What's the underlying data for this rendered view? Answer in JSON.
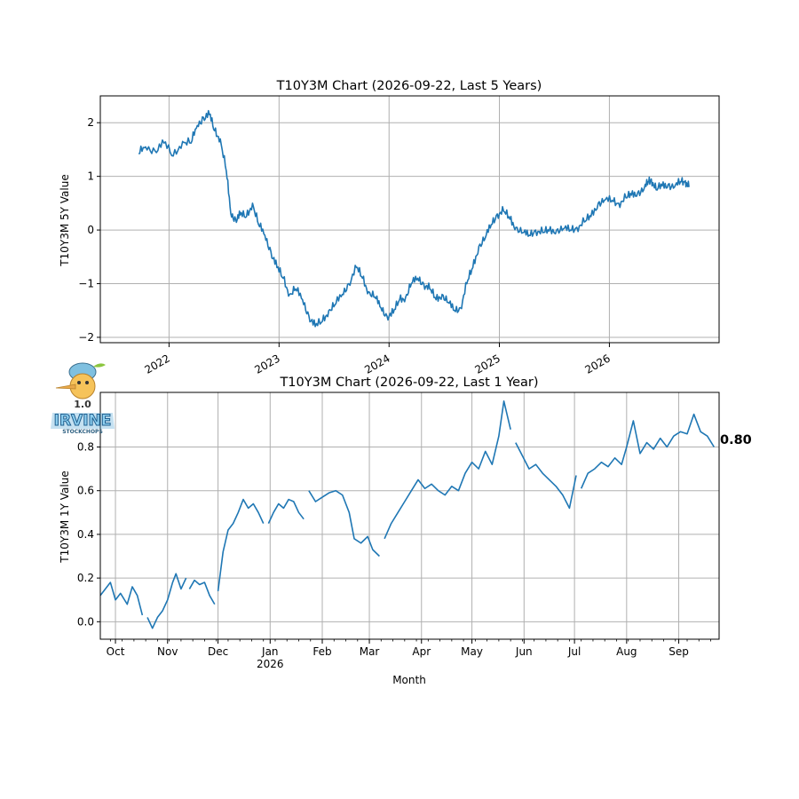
{
  "colors": {
    "line": "#1f77b4",
    "grid": "#b0b0b0",
    "axis": "#000000"
  },
  "logo": {
    "icon": "pinocchio-mascot-icon",
    "version": "1.0",
    "brand": "IRVINE",
    "tagline": "STOCKCHOPS"
  },
  "chart_data": [
    {
      "type": "line",
      "title": "T10Y3M Chart (2026-09-22, Last 5 Years)",
      "xlabel": "",
      "ylabel": "T10Y3M 5Y Value",
      "xlim": [
        "2021-05-18",
        "2026-12-31"
      ],
      "ylim": [
        -2.1,
        2.5
      ],
      "yticks": [
        -2,
        -1,
        0,
        1,
        2
      ],
      "xticks": [
        {
          "date": "2022-01-01",
          "label": "2022"
        },
        {
          "date": "2023-01-01",
          "label": "2023"
        },
        {
          "date": "2024-01-01",
          "label": "2024"
        },
        {
          "date": "2025-01-01",
          "label": "2025"
        },
        {
          "date": "2026-01-01",
          "label": "2026"
        }
      ],
      "grid": true,
      "series": [
        {
          "x": [
            "2021-09-22",
            "2021-10-15",
            "2021-11-15",
            "2021-12-15",
            "2022-01-15",
            "2022-02-15",
            "2022-03-15",
            "2022-04-05",
            "2022-04-25",
            "2022-05-15",
            "2022-06-01",
            "2022-06-20",
            "2022-07-10",
            "2022-07-25",
            "2022-08-10",
            "2022-08-25",
            "2022-09-15",
            "2022-10-05",
            "2022-10-25",
            "2022-11-15",
            "2022-12-05",
            "2022-12-25",
            "2023-01-15",
            "2023-02-05",
            "2023-02-25",
            "2023-03-20",
            "2023-04-10",
            "2023-05-01",
            "2023-05-25",
            "2023-06-15",
            "2023-07-05",
            "2023-07-30",
            "2023-08-20",
            "2023-09-15",
            "2023-10-05",
            "2023-10-25",
            "2023-11-15",
            "2023-12-05",
            "2023-12-25",
            "2024-01-15",
            "2024-02-05",
            "2024-02-25",
            "2024-03-15",
            "2024-04-05",
            "2024-04-25",
            "2024-05-15",
            "2024-06-05",
            "2024-06-25",
            "2024-07-15",
            "2024-08-05",
            "2024-08-25",
            "2024-09-15",
            "2024-10-05",
            "2024-10-25",
            "2024-11-15",
            "2024-12-05",
            "2024-12-25",
            "2025-01-15",
            "2025-02-05",
            "2025-02-25",
            "2025-03-20",
            "2025-04-10",
            "2025-05-01",
            "2025-05-25",
            "2025-06-15",
            "2025-07-10",
            "2025-08-01",
            "2025-08-25",
            "2025-09-15",
            "2025-10-10",
            "2025-11-01",
            "2025-11-25",
            "2025-12-15",
            "2026-01-10",
            "2026-02-01",
            "2026-02-25",
            "2026-03-15",
            "2026-04-05",
            "2026-04-25",
            "2026-05-10",
            "2026-05-20",
            "2026-06-05",
            "2026-06-25",
            "2026-07-15",
            "2026-08-05",
            "2026-08-25",
            "2026-09-10",
            "2026-09-22"
          ],
          "y": [
            1.42,
            1.55,
            1.48,
            1.62,
            1.38,
            1.65,
            1.62,
            1.95,
            2.1,
            2.15,
            1.85,
            1.7,
            1.1,
            0.3,
            0.2,
            0.28,
            0.25,
            0.5,
            0.1,
            -0.1,
            -0.4,
            -0.7,
            -0.9,
            -1.2,
            -1.1,
            -1.3,
            -1.6,
            -1.8,
            -1.7,
            -1.5,
            -1.4,
            -1.2,
            -1.0,
            -0.7,
            -0.9,
            -1.15,
            -1.25,
            -1.45,
            -1.6,
            -1.55,
            -1.3,
            -1.25,
            -1.0,
            -0.9,
            -1.0,
            -1.1,
            -1.3,
            -1.2,
            -1.35,
            -1.5,
            -1.45,
            -1.0,
            -0.7,
            -0.3,
            -0.15,
            0.1,
            0.3,
            0.35,
            0.2,
            0.05,
            -0.05,
            -0.1,
            0.0,
            -0.05,
            -0.02,
            0.0,
            0.02,
            0.0,
            0.05,
            0.15,
            0.25,
            0.5,
            0.55,
            0.55,
            0.5,
            0.6,
            0.65,
            0.7,
            0.75,
            0.9,
            0.95,
            0.75,
            0.82,
            0.85,
            0.8,
            0.9,
            0.92,
            0.8
          ]
        }
      ]
    },
    {
      "type": "line",
      "title": "T10Y3M Chart (2026-09-22, Last 1 Year)",
      "xlabel": "Month",
      "ylabel": "T10Y3M 1Y Value",
      "xlim": [
        "2025-09-22",
        "2026-09-25"
      ],
      "ylim": [
        -0.08,
        1.05
      ],
      "yticks": [
        0.0,
        0.2,
        0.4,
        0.6,
        0.8
      ],
      "xticks": [
        {
          "date": "2025-10-01",
          "label": "Oct"
        },
        {
          "date": "2025-11-01",
          "label": "Nov"
        },
        {
          "date": "2025-12-01",
          "label": "Dec"
        },
        {
          "date": "2026-01-01",
          "label": "Jan",
          "sublabel": "2026"
        },
        {
          "date": "2026-02-01",
          "label": "Feb"
        },
        {
          "date": "2026-03-01",
          "label": "Mar"
        },
        {
          "date": "2026-04-01",
          "label": "Apr"
        },
        {
          "date": "2026-05-01",
          "label": "May"
        },
        {
          "date": "2026-06-01",
          "label": "Jun"
        },
        {
          "date": "2026-07-01",
          "label": "Jul"
        },
        {
          "date": "2026-08-01",
          "label": "Aug"
        },
        {
          "date": "2026-09-01",
          "label": "Sep"
        }
      ],
      "grid": true,
      "last_value_label": "0.80",
      "series": [
        {
          "segments": [
            {
              "x": [
                "2025-09-22",
                "2025-09-25",
                "2025-09-28",
                "2025-10-01",
                "2025-10-04",
                "2025-10-08",
                "2025-10-11",
                "2025-10-14",
                "2025-10-17"
              ],
              "y": [
                0.12,
                0.15,
                0.18,
                0.1,
                0.13,
                0.08,
                0.16,
                0.12,
                0.03
              ]
            },
            {
              "x": [
                "2025-10-20",
                "2025-10-23",
                "2025-10-26",
                "2025-10-29",
                "2025-11-01",
                "2025-11-04",
                "2025-11-06",
                "2025-11-09",
                "2025-11-12"
              ],
              "y": [
                0.02,
                -0.03,
                0.02,
                0.05,
                0.1,
                0.18,
                0.22,
                0.15,
                0.2
              ]
            },
            {
              "x": [
                "2025-11-14",
                "2025-11-17",
                "2025-11-20",
                "2025-11-23",
                "2025-11-26",
                "2025-11-29"
              ],
              "y": [
                0.15,
                0.19,
                0.17,
                0.18,
                0.12,
                0.08
              ]
            },
            {
              "x": [
                "2025-12-01",
                "2025-12-04",
                "2025-12-07",
                "2025-12-10",
                "2025-12-13",
                "2025-12-16",
                "2025-12-19",
                "2025-12-22",
                "2025-12-25",
                "2025-12-28"
              ],
              "y": [
                0.14,
                0.32,
                0.42,
                0.45,
                0.5,
                0.56,
                0.52,
                0.54,
                0.5,
                0.45
              ]
            },
            {
              "x": [
                "2025-12-31",
                "2026-01-03",
                "2026-01-06",
                "2026-01-09",
                "2026-01-12",
                "2026-01-15",
                "2026-01-18",
                "2026-01-21"
              ],
              "y": [
                0.45,
                0.5,
                0.54,
                0.52,
                0.56,
                0.55,
                0.5,
                0.47
              ]
            },
            {
              "x": [
                "2026-01-24",
                "2026-01-28",
                "2026-02-01",
                "2026-02-05",
                "2026-02-09",
                "2026-02-13",
                "2026-02-17",
                "2026-02-20",
                "2026-02-24",
                "2026-02-28",
                "2026-03-03",
                "2026-03-07"
              ],
              "y": [
                0.6,
                0.55,
                0.57,
                0.59,
                0.6,
                0.58,
                0.5,
                0.38,
                0.36,
                0.39,
                0.33,
                0.3
              ]
            },
            {
              "x": [
                "2026-03-10",
                "2026-03-14",
                "2026-03-18",
                "2026-03-22",
                "2026-03-26",
                "2026-03-30",
                "2026-04-03",
                "2026-04-07",
                "2026-04-11",
                "2026-04-15",
                "2026-04-19",
                "2026-04-23",
                "2026-04-27",
                "2026-05-01",
                "2026-05-05",
                "2026-05-09",
                "2026-05-13",
                "2026-05-17",
                "2026-05-20",
                "2026-05-24"
              ],
              "y": [
                0.38,
                0.45,
                0.5,
                0.55,
                0.6,
                0.65,
                0.61,
                0.63,
                0.6,
                0.58,
                0.62,
                0.6,
                0.68,
                0.73,
                0.7,
                0.78,
                0.72,
                0.85,
                1.01,
                0.88
              ]
            },
            {
              "x": [
                "2026-05-27",
                "2026-05-31",
                "2026-06-04",
                "2026-06-08",
                "2026-06-12",
                "2026-06-16",
                "2026-06-20",
                "2026-06-24",
                "2026-06-28",
                "2026-07-02"
              ],
              "y": [
                0.82,
                0.76,
                0.7,
                0.72,
                0.68,
                0.65,
                0.62,
                0.58,
                0.52,
                0.67
              ]
            },
            {
              "x": [
                "2026-07-05",
                "2026-07-09",
                "2026-07-13",
                "2026-07-17",
                "2026-07-21",
                "2026-07-25",
                "2026-07-29",
                "2026-08-01",
                "2026-08-05",
                "2026-08-09",
                "2026-08-13",
                "2026-08-17",
                "2026-08-21",
                "2026-08-25",
                "2026-08-29",
                "2026-09-02",
                "2026-09-06",
                "2026-09-10",
                "2026-09-14",
                "2026-09-18",
                "2026-09-22"
              ],
              "y": [
                0.61,
                0.68,
                0.7,
                0.73,
                0.71,
                0.75,
                0.72,
                0.8,
                0.92,
                0.77,
                0.82,
                0.79,
                0.84,
                0.8,
                0.85,
                0.87,
                0.86,
                0.95,
                0.87,
                0.85,
                0.8
              ]
            }
          ]
        }
      ]
    }
  ]
}
